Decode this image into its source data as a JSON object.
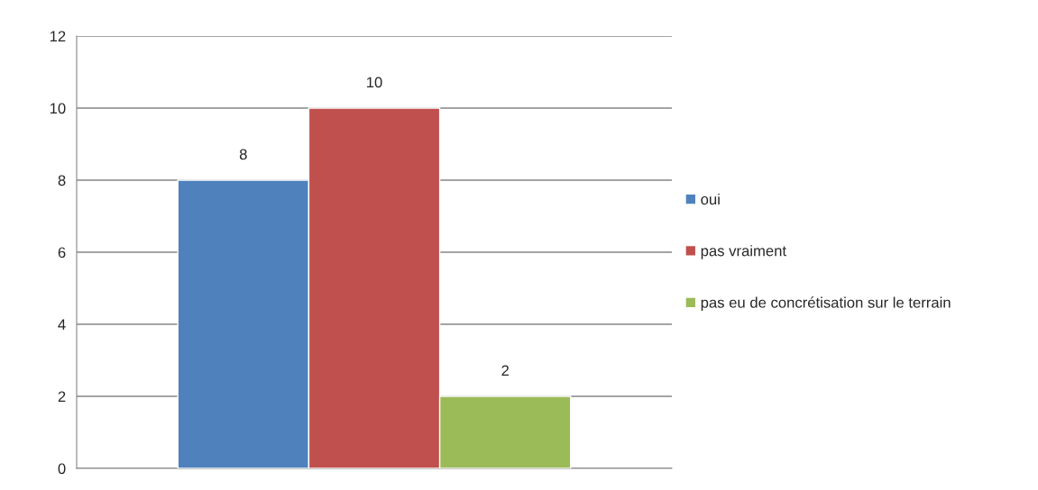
{
  "chart_data": {
    "type": "bar",
    "categories": [
      null
    ],
    "series": [
      {
        "name": "oui",
        "color": "#4f81bd",
        "values": [
          8
        ]
      },
      {
        "name": "pas vraiment",
        "color": "#c0504d",
        "values": [
          10
        ]
      },
      {
        "name": "pas eu de concrétisation sur le terrain",
        "color": "#9bbb59",
        "values": [
          2
        ]
      }
    ],
    "ylim": [
      0,
      12
    ],
    "yticks": [
      0,
      2,
      4,
      6,
      8,
      10,
      12
    ],
    "grid": "y",
    "legend": "right",
    "data_labels": true
  }
}
